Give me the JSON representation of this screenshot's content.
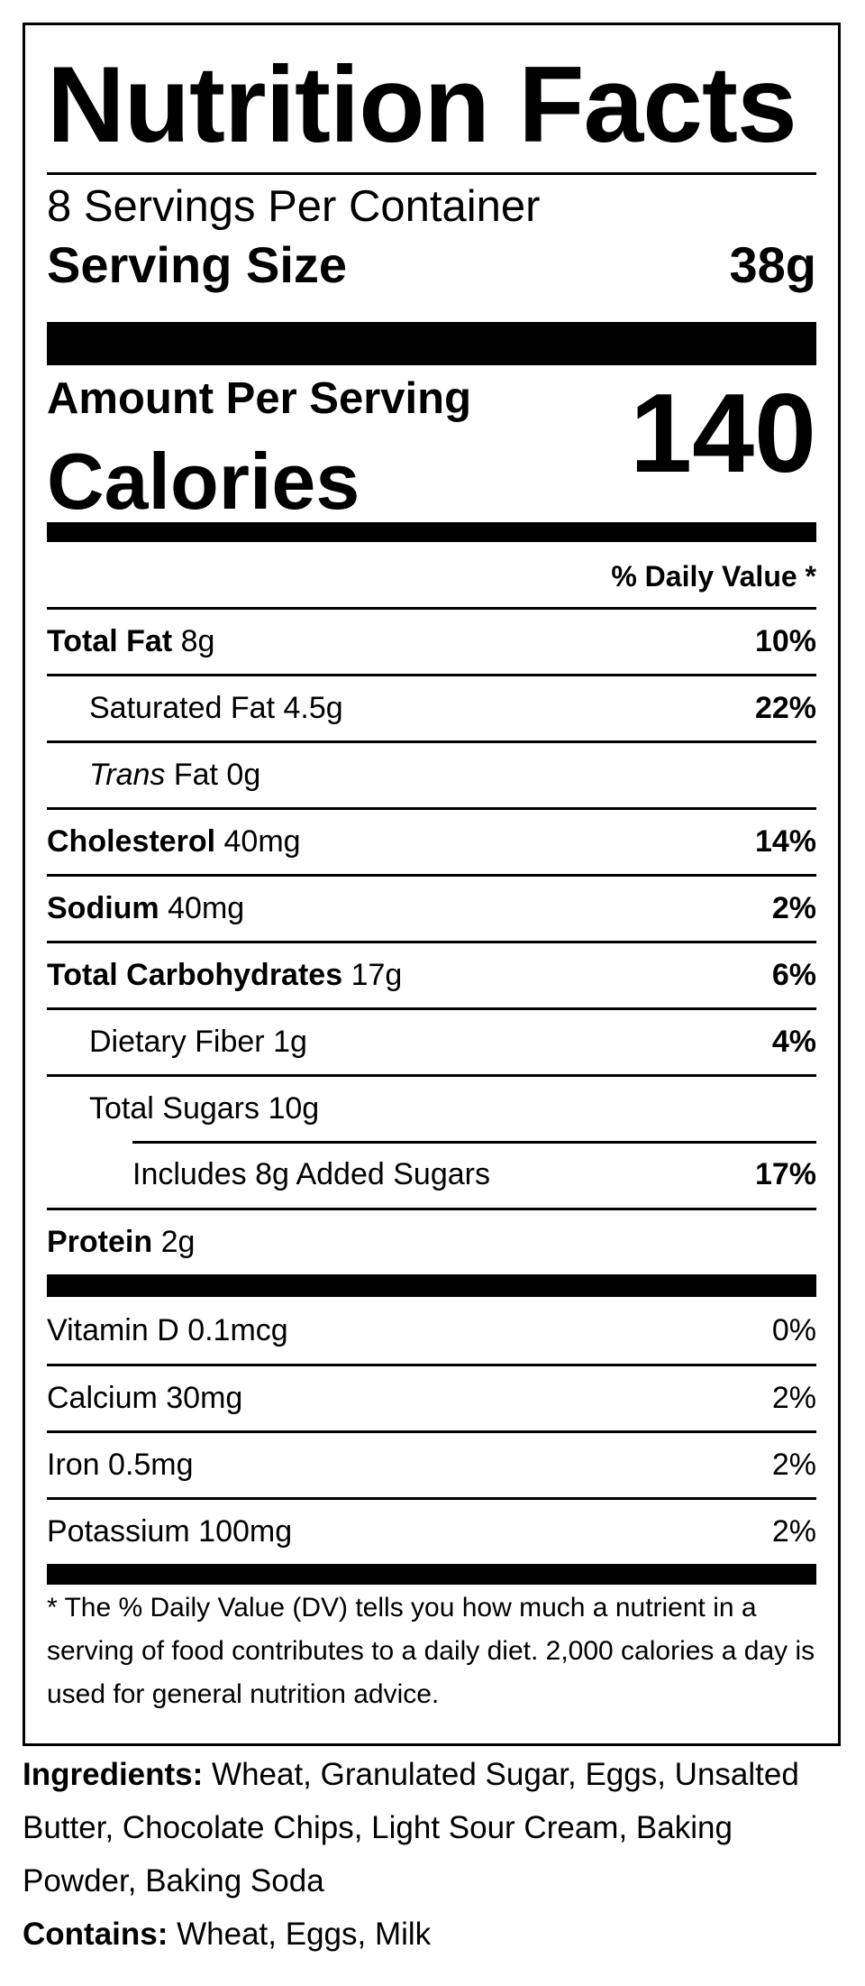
{
  "title": "Nutrition Facts",
  "servings_per_container": "8 Servings Per Container",
  "serving_size": {
    "label": "Serving Size",
    "value": "38g"
  },
  "amount_per_serving": "Amount Per Serving",
  "calories": {
    "label": "Calories",
    "value": "140"
  },
  "dv_header": "% Daily Value *",
  "nutrients": [
    {
      "name": "Total Fat",
      "amount": "8g",
      "dv": "10%"
    },
    {
      "name": "Saturated Fat",
      "amount": "4.5g",
      "dv": "22%"
    },
    {
      "name_italic": "Trans",
      "name": "Fat",
      "amount": "0g",
      "dv": ""
    },
    {
      "name": "Cholesterol",
      "amount": "40mg",
      "dv": "14%"
    },
    {
      "name": "Sodium",
      "amount": "40mg",
      "dv": "2%"
    },
    {
      "name": "Total Carbohydrates",
      "amount": "17g",
      "dv": "6%"
    },
    {
      "name": "Dietary Fiber",
      "amount": "1g",
      "dv": "4%"
    },
    {
      "name": "Total Sugars",
      "amount": "10g",
      "dv": ""
    },
    {
      "text": "Includes 8g Added Sugars",
      "dv": "17%"
    },
    {
      "name": "Protein",
      "amount": "2g",
      "dv": ""
    }
  ],
  "vitamins": [
    {
      "text": "Vitamin D 0.1mcg",
      "dv": "0%"
    },
    {
      "text": "Calcium 30mg",
      "dv": "2%"
    },
    {
      "text": "Iron 0.5mg",
      "dv": "2%"
    },
    {
      "text": "Potassium 100mg",
      "dv": "2%"
    }
  ],
  "footnote": "* The % Daily Value (DV) tells you how much a nutrient in a serving of food contributes to a daily diet. 2,000 calories a day is used for general nutrition advice.",
  "ingredients": {
    "label": "Ingredients:",
    "text": "Wheat, Granulated Sugar, Eggs, Unsalted Butter, Chocolate Chips, Light Sour Cream, Baking Powder, Baking Soda"
  },
  "contains": {
    "label": "Contains:",
    "text": "Wheat, Eggs, Milk"
  }
}
